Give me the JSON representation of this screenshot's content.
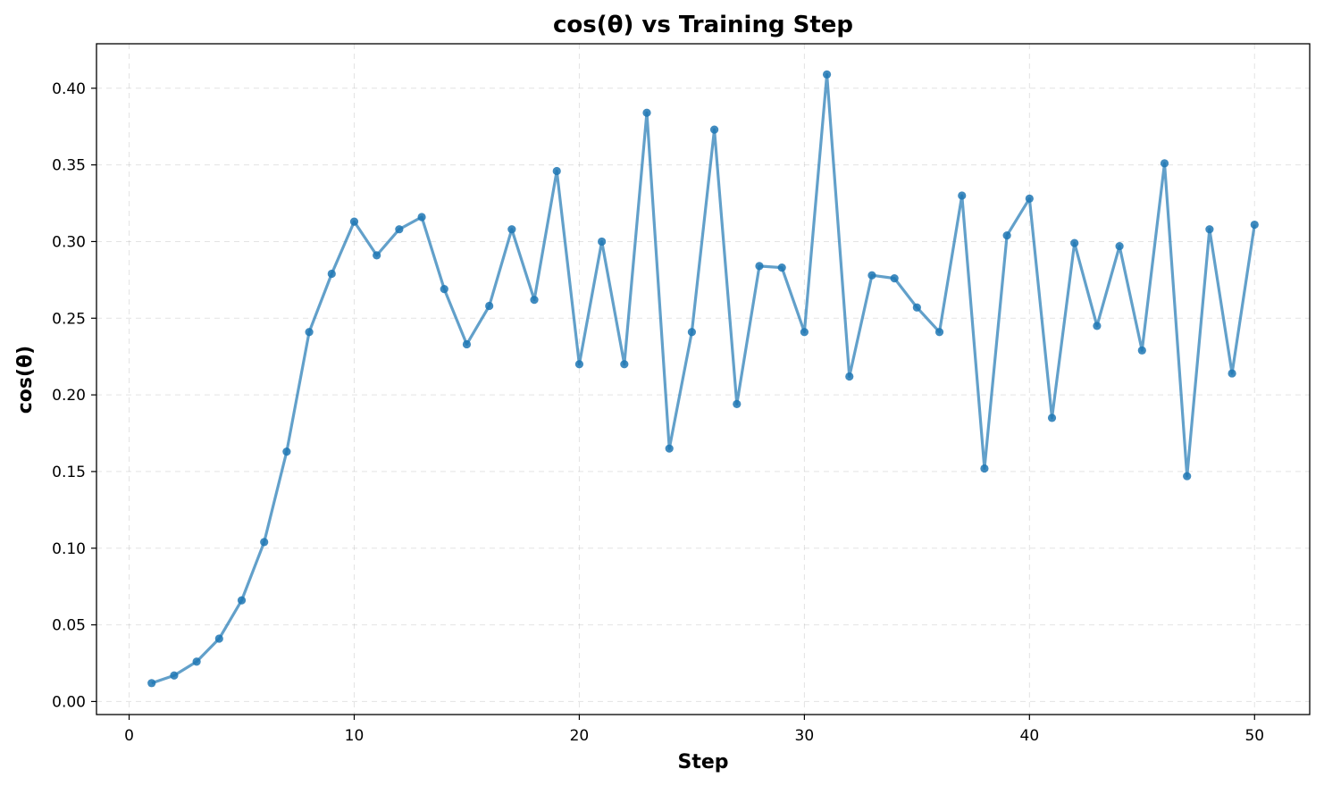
{
  "chart_data": {
    "type": "line",
    "title": "cos(θ) vs Training Step",
    "xlabel": "Step",
    "ylabel": "cos(θ)",
    "xlim": [
      -1.45,
      52.45
    ],
    "ylim": [
      -0.0085,
      0.429
    ],
    "xticks": [
      0,
      10,
      20,
      30,
      40,
      50
    ],
    "xtick_labels": [
      "0",
      "10",
      "20",
      "30",
      "40",
      "50"
    ],
    "yticks": [
      0.0,
      0.05,
      0.1,
      0.15,
      0.2,
      0.25,
      0.3,
      0.35,
      0.4
    ],
    "ytick_labels": [
      "0.00",
      "0.05",
      "0.10",
      "0.15",
      "0.20",
      "0.25",
      "0.30",
      "0.35",
      "0.40"
    ],
    "grid": true,
    "color": "#1f77b4",
    "x": [
      1,
      2,
      3,
      4,
      5,
      6,
      7,
      8,
      9,
      10,
      11,
      12,
      13,
      14,
      15,
      16,
      17,
      18,
      19,
      20,
      21,
      22,
      23,
      24,
      25,
      26,
      27,
      28,
      29,
      30,
      31,
      32,
      33,
      34,
      35,
      36,
      37,
      38,
      39,
      40,
      41,
      42,
      43,
      44,
      45,
      46,
      47,
      48,
      49,
      50
    ],
    "y": [
      0.012,
      0.017,
      0.026,
      0.041,
      0.066,
      0.104,
      0.163,
      0.241,
      0.279,
      0.313,
      0.291,
      0.308,
      0.316,
      0.269,
      0.233,
      0.258,
      0.308,
      0.262,
      0.346,
      0.22,
      0.3,
      0.22,
      0.384,
      0.165,
      0.241,
      0.373,
      0.194,
      0.284,
      0.283,
      0.241,
      0.409,
      0.212,
      0.278,
      0.276,
      0.257,
      0.241,
      0.33,
      0.152,
      0.304,
      0.328,
      0.185,
      0.299,
      0.245,
      0.297,
      0.229,
      0.351,
      0.147,
      0.308,
      0.214,
      0.311
    ]
  }
}
